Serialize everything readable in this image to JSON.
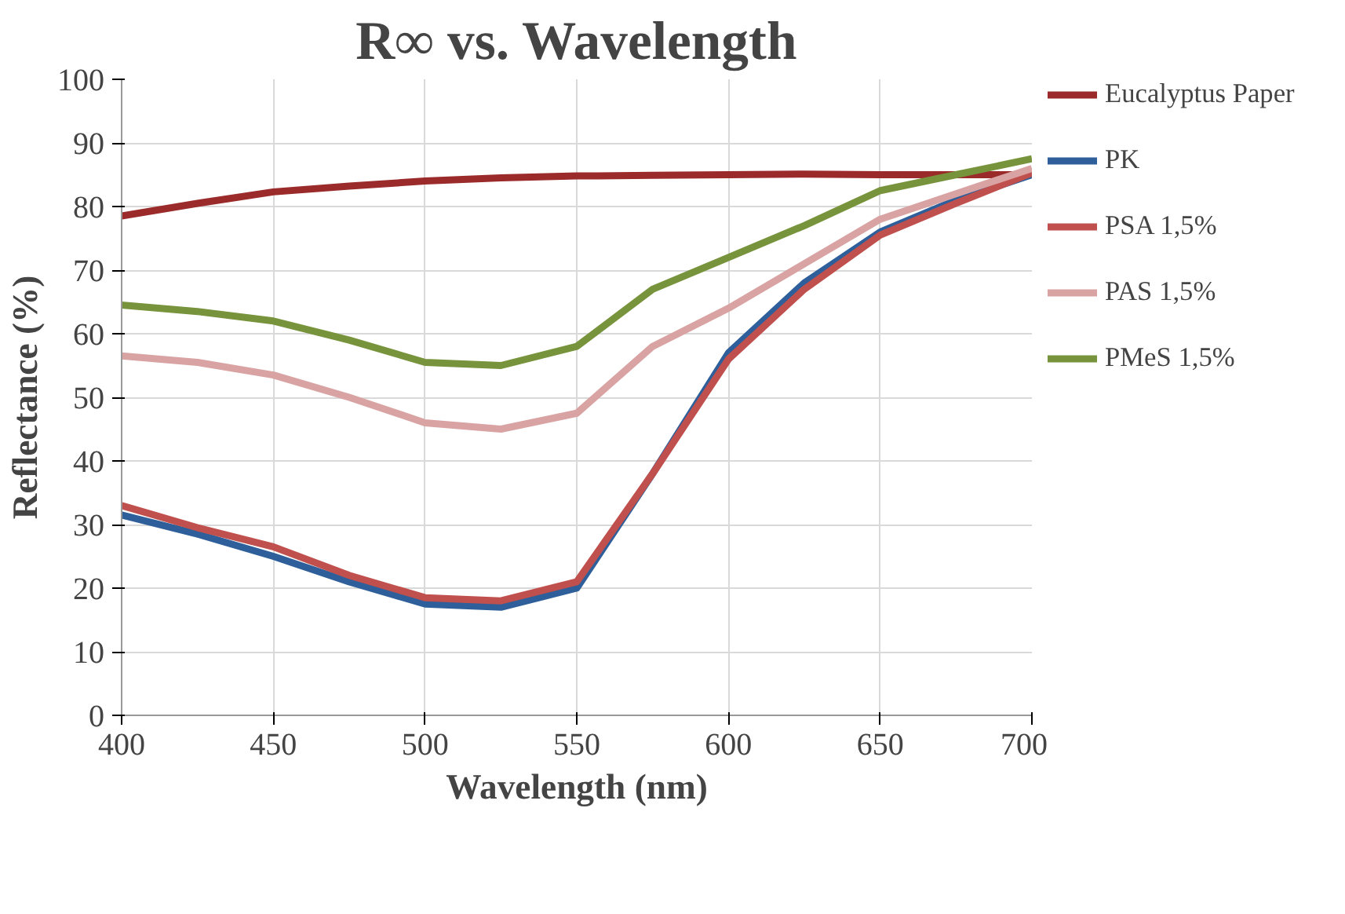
{
  "chart_data": {
    "type": "line",
    "title": "R∞ vs. Wavelength",
    "xlabel": "Wavelength (nm)",
    "ylabel": "Reflectance (%)",
    "x": [
      400,
      425,
      450,
      475,
      500,
      525,
      550,
      575,
      600,
      625,
      650,
      675,
      700
    ],
    "series": [
      {
        "name": "Eucalyptus Paper",
        "color": "#9b2a2a",
        "values": [
          78.5,
          80.5,
          82.3,
          83.2,
          84,
          84.5,
          84.8,
          84.9,
          85,
          85.1,
          85,
          85,
          85
        ]
      },
      {
        "name": "PK",
        "color": "#2e5f9a",
        "values": [
          31.5,
          28.5,
          25,
          21,
          17.5,
          17,
          20,
          38,
          57,
          68,
          76,
          81,
          85
        ]
      },
      {
        "name": "PSA 1,5%",
        "color": "#c0504d",
        "values": [
          33,
          29.5,
          26.5,
          22,
          18.5,
          18,
          21,
          38,
          56,
          67,
          75.5,
          80.5,
          85.3
        ]
      },
      {
        "name": "PAS 1,5%",
        "color": "#d9a3a3",
        "values": [
          56.5,
          55.5,
          53.5,
          50,
          46,
          45,
          47.5,
          58,
          64,
          71,
          78,
          82,
          86
        ]
      },
      {
        "name": "PMeS 1,5%",
        "color": "#77933c",
        "values": [
          64.5,
          63.5,
          62,
          59,
          55.5,
          55,
          58,
          67,
          72,
          77,
          82.5,
          85,
          87.5
        ]
      }
    ],
    "xlim": [
      400,
      700
    ],
    "xticks": [
      400,
      450,
      500,
      550,
      600,
      650,
      700
    ],
    "ylim": [
      0,
      100
    ],
    "yticks": [
      0,
      10,
      20,
      30,
      40,
      50,
      60,
      70,
      80,
      90,
      100
    ],
    "grid": true,
    "legend": "right",
    "marker": "none",
    "line_style": "solid"
  }
}
